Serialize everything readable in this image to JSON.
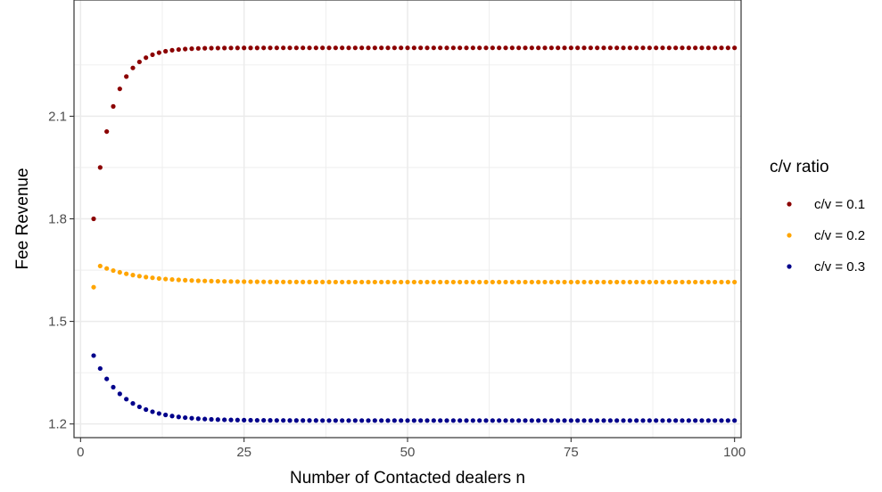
{
  "chart_data": {
    "type": "scatter",
    "xlabel": "Number of Contacted dealers n",
    "ylabel": "Fee Revenue",
    "xlim": [
      -1,
      101
    ],
    "ylim": [
      1.16,
      2.44
    ],
    "x_ticks": [
      0,
      25,
      50,
      75,
      100
    ],
    "x_tick_labels": [
      "0",
      "25",
      "50",
      "75",
      "100"
    ],
    "y_ticks": [
      1.2,
      1.5,
      1.8,
      2.1
    ],
    "y_tick_labels": [
      "1.2",
      "1.5",
      "1.8",
      "2.1"
    ],
    "grid": true,
    "legend": {
      "title": "c/v ratio",
      "placement": "right"
    },
    "series": [
      {
        "name": "c/v = 0.1",
        "color": "#8b0000",
        "model": {
          "form": "limit+a*exp(-(n-2)/tau)",
          "n_start": 2,
          "n_end": 100,
          "limit": 2.3,
          "a": -0.5,
          "tau": 2.8
        },
        "points": [
          [
            2,
            1.8
          ],
          [
            3,
            2.05
          ],
          [
            4,
            2.14
          ],
          [
            5,
            2.19
          ],
          [
            6,
            2.22
          ],
          [
            10,
            2.27
          ],
          [
            15,
            2.29
          ],
          [
            25,
            2.3
          ],
          [
            50,
            2.3
          ],
          [
            75,
            2.3
          ],
          [
            100,
            2.3
          ]
        ]
      },
      {
        "name": "c/v = 0.2",
        "color": "#ffa500",
        "model": {
          "form": "special_first+limit+a*exp(-(n-3)/tau)",
          "n_start": 2,
          "n_end": 100,
          "first_value": 1.6,
          "limit": 1.615,
          "a": 0.047,
          "tau": 6
        },
        "points": [
          [
            2,
            1.6
          ],
          [
            3,
            1.66
          ],
          [
            4,
            1.662
          ],
          [
            10,
            1.64
          ],
          [
            20,
            1.625
          ],
          [
            50,
            1.616
          ],
          [
            75,
            1.615
          ],
          [
            100,
            1.615
          ]
        ]
      },
      {
        "name": "c/v = 0.3",
        "color": "#00008b",
        "model": {
          "form": "limit+a*exp(-(n-2)/tau)",
          "n_start": 2,
          "n_end": 100,
          "limit": 1.21,
          "a": 0.19,
          "tau": 4.5
        },
        "points": [
          [
            2,
            1.4
          ],
          [
            3,
            1.355
          ],
          [
            4,
            1.32
          ],
          [
            5,
            1.3
          ],
          [
            10,
            1.24
          ],
          [
            20,
            1.22
          ],
          [
            50,
            1.21
          ],
          [
            75,
            1.21
          ],
          [
            100,
            1.21
          ]
        ]
      }
    ]
  }
}
